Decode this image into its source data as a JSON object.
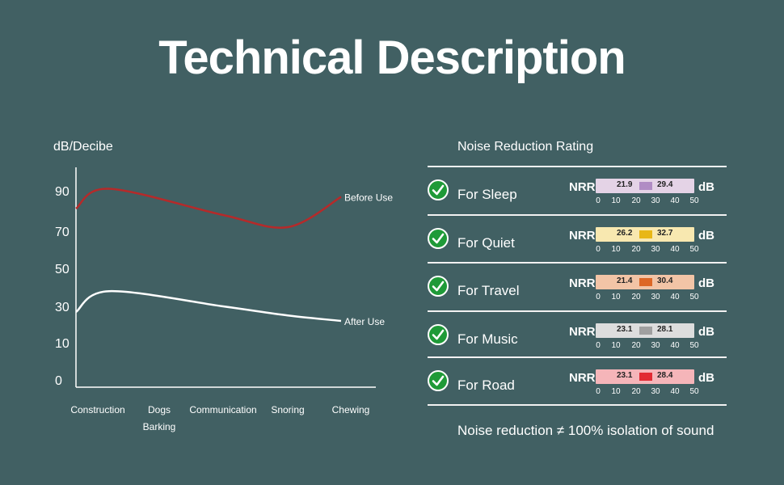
{
  "header": {
    "title": "Technical Description"
  },
  "chart_data": {
    "type": "line",
    "ylabel": "dB/Decibe",
    "yticks": [
      "0",
      "10",
      "30",
      "50",
      "70",
      "90"
    ],
    "categories": [
      "Construction",
      "Dogs Barking",
      "Communication",
      "Snoring",
      "Chewing"
    ],
    "series": [
      {
        "name": "Before Use",
        "values": [
          91,
          91,
          78,
          72,
          87
        ],
        "color": "#b52a2a"
      },
      {
        "name": "After Use",
        "values": [
          43,
          38,
          30,
          25,
          22
        ],
        "color": "#ffffff"
      }
    ]
  },
  "nrr": {
    "header": "Noise Reduction Rating",
    "nrr_label": "NRR",
    "db_label": "dB",
    "scale": [
      "0",
      "10",
      "20",
      "30",
      "40",
      "50"
    ],
    "rows": [
      {
        "label": "For Sleep",
        "v1": "21.9",
        "v2": "29.4",
        "bg": "#e4d3e6",
        "accent": "#b08cc4"
      },
      {
        "label": "For Quiet",
        "v1": "26.2",
        "v2": "32.7",
        "bg": "#f8e8b0",
        "accent": "#e8b717"
      },
      {
        "label": "For Travel",
        "v1": "21.4",
        "v2": "30.4",
        "bg": "#f2c4a6",
        "accent": "#dd6726"
      },
      {
        "label": "For Music",
        "v1": "23.1",
        "v2": "28.1",
        "bg": "#dddddd",
        "accent": "#a0a0a0"
      },
      {
        "label": "For Road",
        "v1": "23.1",
        "v2": "28.4",
        "bg": "#f5b5b9",
        "accent": "#e22a33"
      }
    ],
    "footnote": "Noise reduction ≠ 100% isolation of sound"
  }
}
